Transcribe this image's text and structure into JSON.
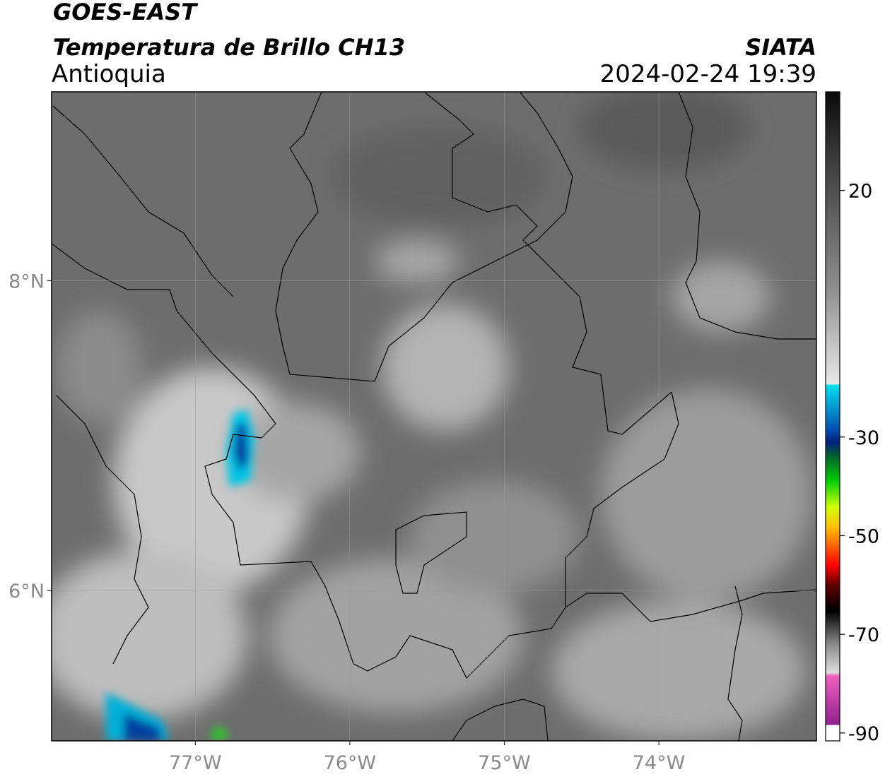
{
  "header": {
    "title": "GOES-EAST",
    "subtitle": "Temperatura de Brillo CH13",
    "region": "Antioquia",
    "source": "SIATA",
    "timestamp": "2024-02-24 19:39"
  },
  "map": {
    "xlim": [
      -77.93,
      -72.98
    ],
    "ylim": [
      5.03,
      9.22
    ],
    "xticks": [
      {
        "value": -77,
        "label": "77°W"
      },
      {
        "value": -76,
        "label": "76°W"
      },
      {
        "value": -75,
        "label": "75°W"
      },
      {
        "value": -74,
        "label": "74°W"
      }
    ],
    "yticks": [
      {
        "value": 8,
        "label": "8°N"
      },
      {
        "value": 6,
        "label": "6°N"
      }
    ],
    "grid": true
  },
  "colorbar": {
    "lim": [
      -91.6,
      40
    ],
    "ticks": [
      20,
      -30,
      -50,
      -70,
      -90
    ]
  }
}
